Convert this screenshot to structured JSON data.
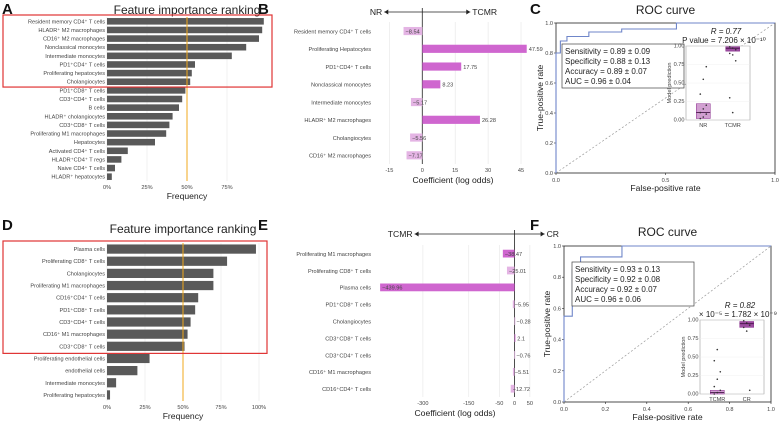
{
  "colors": {
    "bar_gray": "#595959",
    "cutoff_orange": "#f0a81c",
    "highlight_red": "#e03434",
    "magenta": "#cf66cf",
    "light_magenta": "#e4b4e4",
    "roc_blue": "#6f86c9",
    "box_purple": "#8b2d8f",
    "grid": "#e6e6e6"
  },
  "panels": {
    "A": "A",
    "B": "B",
    "C": "C",
    "D": "D",
    "E": "E",
    "F": "F"
  },
  "chart_data": [
    {
      "id": "A",
      "type": "bar",
      "orientation": "horizontal",
      "title": "Feature importance ranking",
      "xlabel": "Frequency",
      "xlim": [
        0,
        100
      ],
      "xticks": [
        "0%",
        "25%",
        "50%",
        "75%"
      ],
      "cutoff": 50,
      "highlight_top_n": 8,
      "categories": [
        "Resident memory CD4⁺ T cells",
        "HLADR⁺ M2 macrophages",
        "CD16⁺ M2 macrophages",
        "Nonclassical monocytes",
        "Intermediate monocytes",
        "PD1⁺CD4⁺ T cells",
        "Proliferating hepatocytes",
        "Cholangiocytes",
        "PD1⁺CD8⁺ T cells",
        "CD3⁺CD4⁺ T cells",
        "B cells",
        "HLADR⁺ cholangiocytes",
        "CD3⁺CD8⁺ T cells",
        "Proliferating M1 macrophages",
        "Hepatocytes",
        "Activated CD4⁺ T cells",
        "HLADR⁺CD4⁺ T regs",
        "Naive CD4⁺ T cells",
        "HLADR⁺ hepatocytes"
      ],
      "values": [
        98,
        97,
        95,
        87,
        78,
        55,
        53,
        52,
        49,
        47,
        45,
        41,
        39,
        37,
        30,
        13,
        9,
        5,
        3
      ]
    },
    {
      "id": "B",
      "type": "bar",
      "orientation": "horizontal",
      "direction_left": "NR",
      "direction_right": "TCMR",
      "xlabel": "Coefficient (log odds)",
      "xlim": [
        -22,
        50
      ],
      "xticks": [
        -15,
        0,
        15,
        30,
        45
      ],
      "categories": [
        "Resident memory CD4⁺ T cells",
        "Proliferating Hepatocytes",
        "PD1⁺CD4⁺ T cells",
        "Nonclassical monocytes",
        "Intermediate monocytes",
        "HLADR⁺ M2 macrophages",
        "Cholangiocytes",
        "CD16⁺ M2 macrophages"
      ],
      "values": [
        -8.54,
        47.59,
        17.75,
        8.23,
        -5.17,
        26.28,
        -5.56,
        -7.17
      ],
      "labels": [
        "−8.54",
        "47.59",
        "17.75",
        "8.23",
        "−5.17",
        "26.28",
        "−5.56",
        "−7.17"
      ]
    },
    {
      "id": "C",
      "type": "line",
      "title": "ROC curve",
      "xlabel": "False-positive rate",
      "ylabel": "True-positive rate",
      "xticks": [
        "0.0",
        "0.5",
        "1.0"
      ],
      "yticks": [
        "0.0",
        "0.2",
        "0.4",
        "0.6",
        "0.8",
        "1.0"
      ],
      "roc_x": [
        0,
        0,
        0.02,
        0.02,
        0.05,
        0.05,
        0.15,
        0.15,
        0.3,
        0.3,
        0.55,
        0.55,
        1
      ],
      "roc_y": [
        0,
        0.8,
        0.8,
        0.88,
        0.88,
        0.91,
        0.91,
        0.94,
        0.94,
        0.96,
        0.96,
        1,
        1
      ],
      "stats": [
        "Sensitivity = 0.89 ± 0.09",
        "Specificity = 0.88 ± 0.13",
        "Accuracy = 0.89 ± 0.07",
        "AUC = 0.96 ± 0.04"
      ],
      "inset": {
        "r_text": "R = 0.77",
        "p_text": "P value = 7.206 × 10⁻¹⁰",
        "ylabel": "Model prediction",
        "yticks": [
          "0.00",
          "0.25",
          "0.50",
          "0.75",
          "1.00"
        ],
        "groups": [
          "NR",
          "TCMR"
        ],
        "medians": [
          0.1,
          0.97
        ],
        "q1": [
          0.02,
          0.93
        ],
        "q3": [
          0.22,
          0.99
        ],
        "nr_points": [
          0.02,
          0.04,
          0.08,
          0.1,
          0.15,
          0.2,
          0.35,
          0.55,
          0.72
        ],
        "tcmr_points": [
          0.99,
          0.97,
          0.95,
          0.9,
          0.88,
          0.8,
          0.3,
          0.1
        ]
      }
    },
    {
      "id": "D",
      "type": "bar",
      "orientation": "horizontal",
      "title": "Feature importance ranking",
      "xlabel": "Frequency",
      "xlim": [
        0,
        100
      ],
      "xticks": [
        "0%",
        "25%",
        "50%",
        "75%",
        "100%"
      ],
      "cutoff": 50,
      "highlight_top_n": 9,
      "categories": [
        "Plasma cells",
        "Proliferating CD8⁺ T cells",
        "Cholangiocytes",
        "Proliferating M1 macrophages",
        "CD16⁺CD4⁺ T cells",
        "PD1⁺CD8⁺ T cells",
        "CD3⁺CD4⁺ T cells",
        "CD16⁺ M1 macrophages",
        "CD3⁺CD8⁺ T cells",
        "Proliferating endothelial cells",
        "endothelial cells",
        "Intermediate monocytes",
        "Proliferating hepatocytes"
      ],
      "values": [
        98,
        79,
        70,
        70,
        60,
        58,
        55,
        53,
        51,
        28,
        20,
        6,
        2
      ]
    },
    {
      "id": "E",
      "type": "bar",
      "orientation": "horizontal",
      "direction_left": "TCMR",
      "direction_right": "CR",
      "xlabel": "Coefficient (log odds)",
      "xlim": [
        -460,
        70
      ],
      "xticks": [
        -300,
        -150,
        -50,
        0,
        50
      ],
      "categories": [
        "Proliferating M1 macrophages",
        "Proliferating CD8⁺ T cells",
        "Plasma cells",
        "PD1⁺CD8⁺ T cells",
        "Cholangiocytes",
        "CD3⁺CD8⁺ T cells",
        "CD3⁺CD4⁺ T cells",
        "CD16⁺ M1 macrophages",
        "CD16⁺CD4⁺ T cells"
      ],
      "values": [
        -38.47,
        -25.01,
        -439.96,
        -5.95,
        -0.28,
        2.1,
        -0.76,
        -5.51,
        -12.72
      ],
      "labels": [
        "−38.47",
        "−25.01",
        "−439.96",
        "−5.95",
        "−0.28",
        "2.1",
        "−0.76",
        "−5.51",
        "−12.72"
      ]
    },
    {
      "id": "F",
      "type": "line",
      "title": "ROC curve",
      "xlabel": "False-positive rate",
      "ylabel": "True-positive rate",
      "xticks": [
        "0.0",
        "0.2",
        "0.4",
        "0.6",
        "0.8",
        "1.0"
      ],
      "yticks": [
        "0.0",
        "0.2",
        "0.4",
        "0.6",
        "0.8",
        "1.0"
      ],
      "roc_x": [
        0,
        0,
        0.04,
        0.04,
        0.08,
        0.08,
        0.28,
        0.28,
        1
      ],
      "roc_y": [
        0,
        0.55,
        0.55,
        0.85,
        0.85,
        0.93,
        0.93,
        1,
        1
      ],
      "stats": [
        "Sensitivity = 0.93 ± 0.13",
        "Specificity = 0.92 ± 0.08",
        "Accuracy = 0.92 ± 0.07",
        "AUC = 0.96 ± 0.06"
      ],
      "inset": {
        "r_text": "R = 0.82",
        "p_text": "× 10⁻⁵ = 1.782 × 10⁻⁹",
        "ylabel": "Model prediction",
        "yticks": [
          "0.00",
          "0.25",
          "0.50",
          "0.75",
          "1.00"
        ],
        "groups": [
          "TCMR",
          "CR"
        ],
        "medians": [
          0.02,
          0.95
        ],
        "q1": [
          0.0,
          0.9
        ],
        "q3": [
          0.05,
          0.98
        ],
        "nr_points": [
          0.0,
          0.02,
          0.05,
          0.1,
          0.2,
          0.3,
          0.45,
          0.6
        ],
        "tcmr_points": [
          0.99,
          0.96,
          0.93,
          0.9,
          0.85,
          0.05
        ]
      }
    }
  ]
}
